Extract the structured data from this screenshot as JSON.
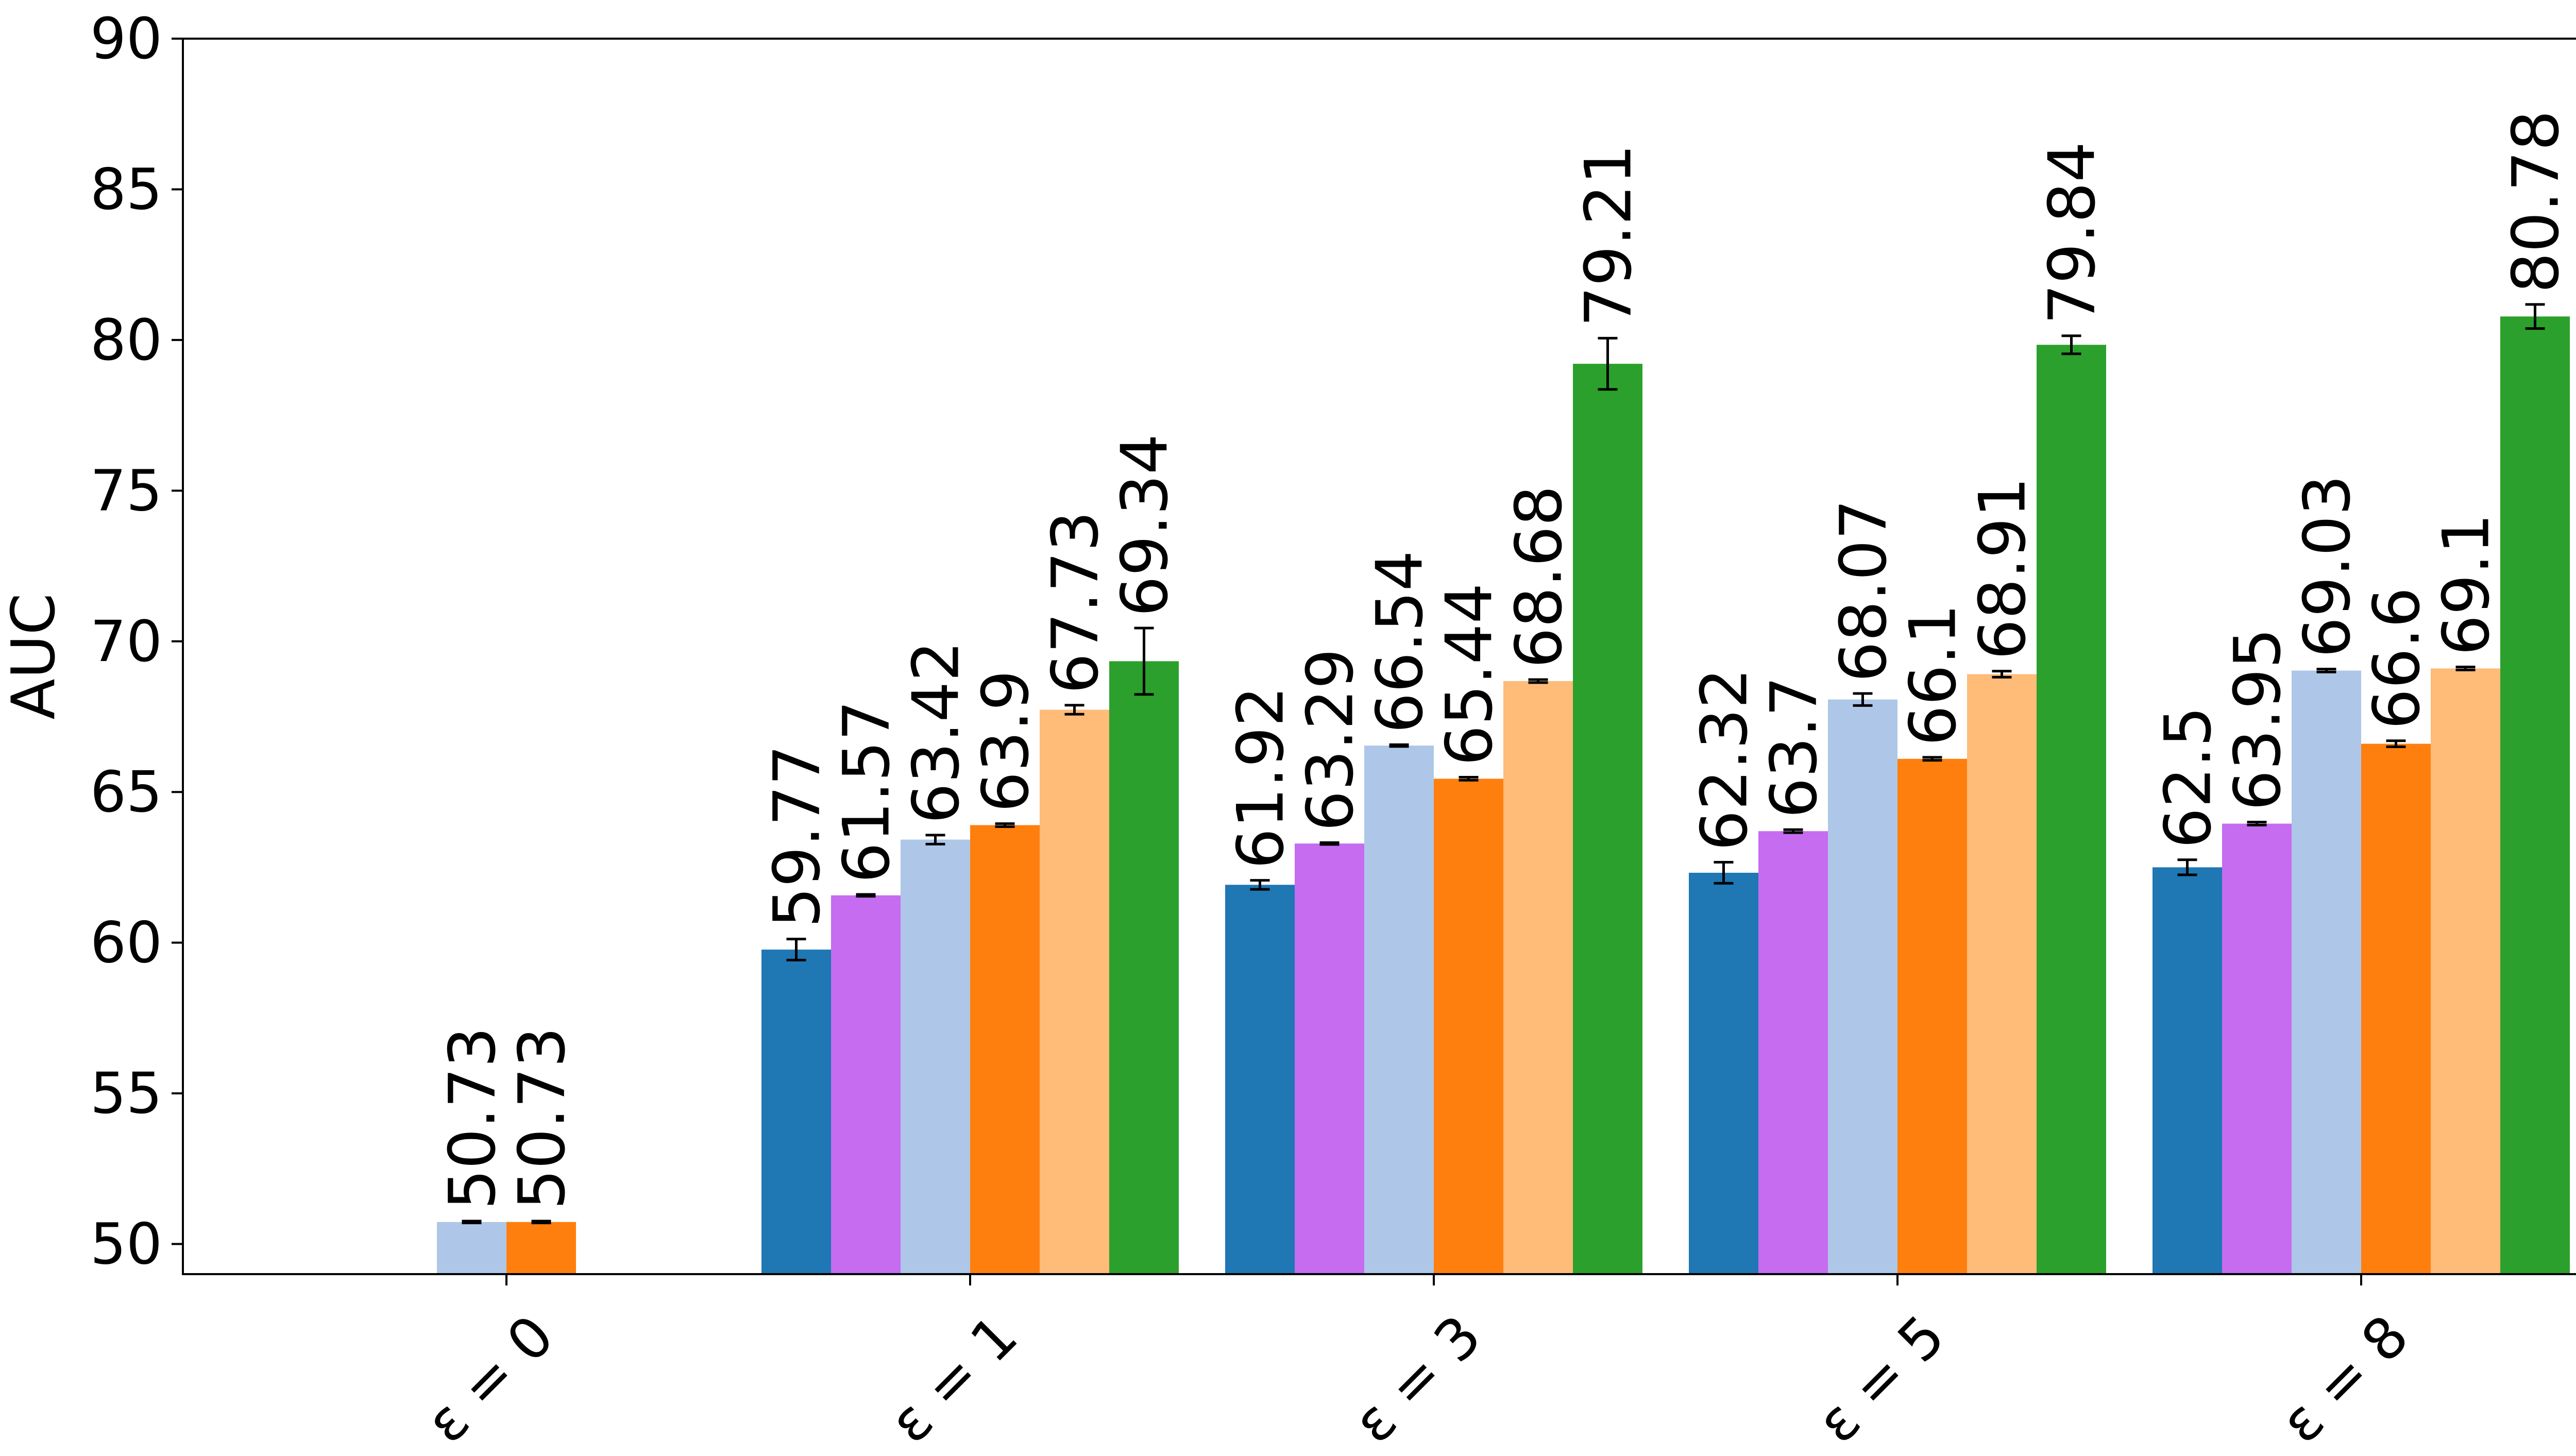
{
  "chart_data": {
    "type": "bar",
    "title": "",
    "xlabel": "",
    "ylabel": "AUC",
    "ylim": [
      49,
      90
    ],
    "yticks": [
      50,
      55,
      60,
      65,
      70,
      75,
      80,
      85,
      90
    ],
    "grid": false,
    "legend": "none",
    "categories": [
      "ε = 0",
      "ε = 1",
      "ε = 3",
      "ε = 5",
      "ε = 8"
    ],
    "series": [
      {
        "color": "#1f77b4",
        "values": [
          null,
          59.77,
          61.92,
          62.32,
          62.5
        ],
        "errors": [
          null,
          0.35,
          0.15,
          0.35,
          0.25
        ]
      },
      {
        "color": "#c56cf0",
        "values": [
          null,
          61.57,
          63.29,
          63.7,
          63.95
        ],
        "errors": [
          null,
          0.03,
          0.03,
          0.05,
          0.05
        ]
      },
      {
        "color": "#aec7e8",
        "values": [
          50.73,
          63.42,
          66.54,
          68.07,
          69.03
        ],
        "errors": [
          0.03,
          0.15,
          0.03,
          0.2,
          0.05
        ]
      },
      {
        "color": "#ff7f0e",
        "values": [
          50.73,
          63.9,
          65.44,
          66.1,
          66.6
        ],
        "errors": [
          0.03,
          0.05,
          0.05,
          0.05,
          0.1
        ]
      },
      {
        "color": "#ffbb78",
        "values": [
          null,
          67.73,
          68.68,
          68.91,
          69.1
        ],
        "errors": [
          null,
          0.15,
          0.05,
          0.1,
          0.05
        ]
      },
      {
        "color": "#2ca02c",
        "values": [
          null,
          69.34,
          79.21,
          79.84,
          80.78
        ],
        "errors": [
          null,
          1.1,
          0.85,
          0.3,
          0.4
        ]
      }
    ]
  }
}
